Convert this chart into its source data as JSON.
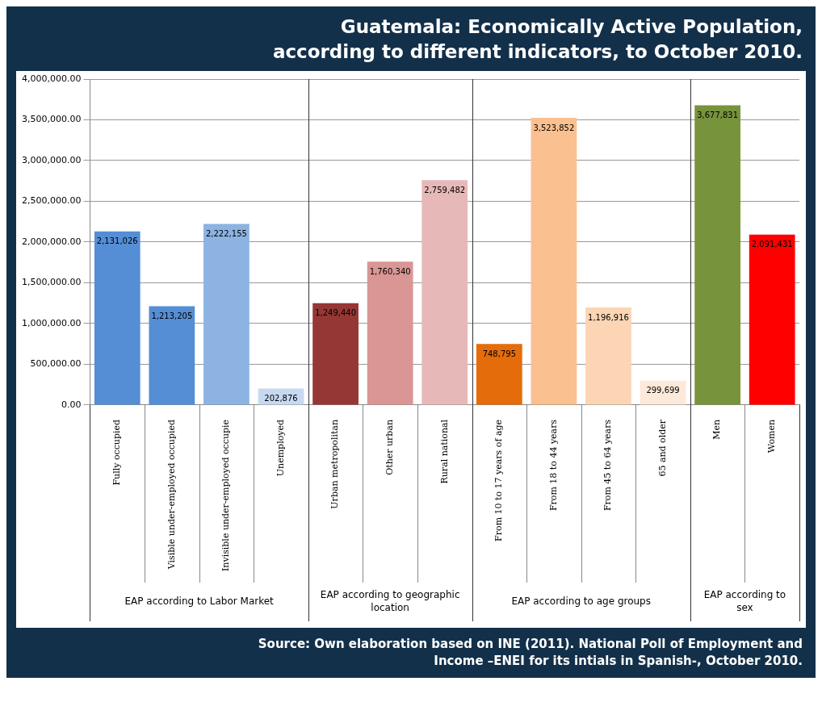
{
  "chart_data": {
    "type": "bar",
    "title": "Guatemala:  Economically Active Population, according to different indicators, to October 2010.",
    "categories": [
      "Fully occupied",
      "Visible under-employed occupied",
      "Invisible under-employed occupie",
      "Unemployed",
      "Urban metropolitan",
      "Other urban",
      "Rural national",
      "From 10 to 17 years of age",
      "From 18 to 44 years",
      "From 45 to 64 years",
      "65 and older",
      "Men",
      "Women"
    ],
    "values": [
      2131026,
      1213205,
      2222155,
      202876,
      1249440,
      1760340,
      2759482,
      748795,
      3523852,
      1196916,
      299699,
      3677831,
      2091431
    ],
    "value_labels": [
      "2,131,026",
      "1,213,205",
      "2,222,155",
      "202,876",
      "1,249,440",
      "1,760,340",
      "2,759,482",
      "748,795",
      "3,523,852",
      "1,196,916",
      "299,699",
      "3,677,831",
      "2,091,431"
    ],
    "colors": [
      "#558ed5",
      "#558ed5",
      "#8db3e2",
      "#c6d9f1",
      "#953735",
      "#d99694",
      "#e6b9b8",
      "#e46c0a",
      "#fac090",
      "#fcd5b5",
      "#fde9d9",
      "#77933c",
      "#ff0000"
    ],
    "ylim": [
      0,
      4000000
    ],
    "yticks": [
      {
        "value": 0,
        "label": "0.00"
      },
      {
        "value": 500000,
        "label": "500,000.00"
      },
      {
        "value": 1000000,
        "label": "1,000,000.00"
      },
      {
        "value": 1500000,
        "label": "1,500,000.00"
      },
      {
        "value": 2000000,
        "label": "2,000,000.00"
      },
      {
        "value": 2500000,
        "label": "2,500,000.00"
      },
      {
        "value": 3000000,
        "label": "3,000,000.00"
      },
      {
        "value": 3500000,
        "label": "3,500,000.00"
      },
      {
        "value": 4000000,
        "label": "4,000,000.00"
      }
    ],
    "grid": "y",
    "legend": false,
    "annotations": [
      "EAP according to Labor Market",
      "EAP according to geographic location",
      "EAP according to age groups",
      "EAP according to sex",
      "Source:  Own elaboration based on INE (2011).  National Poll of Employment and Income –ENEI for its intials in Spanish-, October 2010."
    ]
  }
}
